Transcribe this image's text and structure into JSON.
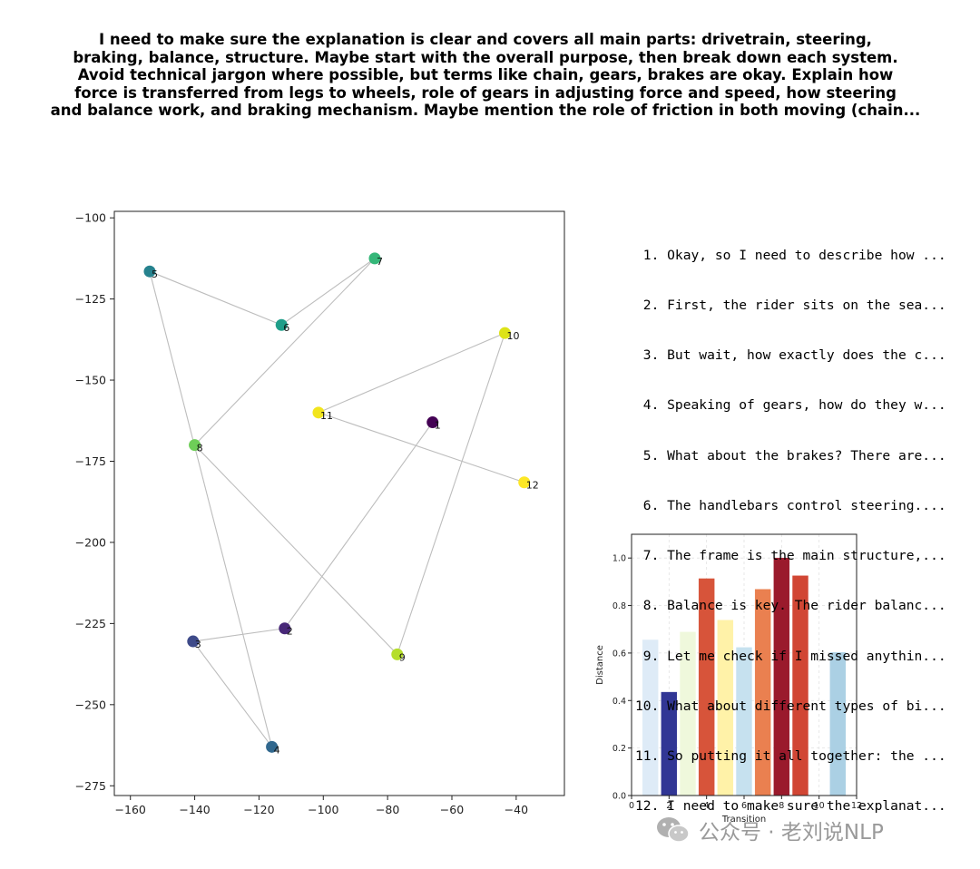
{
  "title": "I need to make sure the explanation is clear and covers all main parts: drivetrain, steering, braking, balance, structure. Maybe start with the overall purpose, then break down each system. Avoid technical jargon where possible, but terms like chain, gears, brakes are okay. Explain how force is transferred from legs to wheels, role of gears in adjusting force and speed, how steering and balance work, and braking mechanism. Maybe mention the role of friction in both moving (chain...",
  "title_lines": [
    "I need to make sure the explanation is clear and covers all main parts: drivetrain, steering,",
    "braking, balance, structure. Maybe start with the overall purpose, then break down each system.",
    "Avoid technical jargon where possible, but terms like chain, gears, brakes are okay. Explain how",
    "force is transferred from legs to wheels, role of gears in adjusting force and speed, how steering",
    "and balance work, and braking mechanism. Maybe mention the role of friction in both moving (chain..."
  ],
  "steps": [
    " 1. Okay, so I need to describe how ...",
    " 2. First, the rider sits on the sea...",
    " 3. But wait, how exactly does the c...",
    " 4. Speaking of gears, how do they w...",
    " 5. What about the brakes? There are...",
    " 6. The handlebars control steering....",
    " 7. The frame is the main structure,...",
    " 8. Balance is key. The rider balanc...",
    " 9. Let me check if I missed anythin...",
    "10. What about different types of bi...",
    "11. So putting it all together: the ...",
    "12. I need to make sure the explanat..."
  ],
  "watermark": {
    "text": "公众号 · 老刘说NLP",
    "icon": "wechat-icon"
  },
  "chart_data": [
    {
      "type": "scatter",
      "xlim": [
        -165,
        -25
      ],
      "ylim": [
        -278,
        -98
      ],
      "xticks": [
        -160,
        -140,
        -120,
        -100,
        -80,
        -60,
        -40
      ],
      "yticks": [
        -100,
        -125,
        -150,
        -175,
        -200,
        -225,
        -250,
        -275
      ],
      "grid": false,
      "colormap": "viridis",
      "connect_in_order": true,
      "points": [
        {
          "label": "1",
          "x": -66,
          "y": -163,
          "color": "#440154"
        },
        {
          "label": "2",
          "x": -112,
          "y": -226.5,
          "color": "#482878"
        },
        {
          "label": "3",
          "x": -140.5,
          "y": -230.5,
          "color": "#3e4a89"
        },
        {
          "label": "4",
          "x": -116,
          "y": -263,
          "color": "#31688e"
        },
        {
          "label": "5",
          "x": -154,
          "y": -116.5,
          "color": "#26828e"
        },
        {
          "label": "6",
          "x": -113,
          "y": -133,
          "color": "#1f9e89"
        },
        {
          "label": "7",
          "x": -84,
          "y": -112.5,
          "color": "#35b779"
        },
        {
          "label": "8",
          "x": -140,
          "y": -170,
          "color": "#6ece58"
        },
        {
          "label": "9",
          "x": -77,
          "y": -234.5,
          "color": "#b5de2b"
        },
        {
          "label": "10",
          "x": -43.5,
          "y": -135.5,
          "color": "#dde318"
        },
        {
          "label": "11",
          "x": -101.5,
          "y": -160,
          "color": "#f2e51d"
        },
        {
          "label": "12",
          "x": -37.5,
          "y": -181.5,
          "color": "#fde725"
        }
      ],
      "point_colors_by_position": [
        "#2f6b8e",
        "#3a8a8f",
        "#3e9a8c",
        "#4aab7a",
        "#6ac46a",
        "#9bd35a",
        "#c8e045",
        "#f0e52c"
      ]
    },
    {
      "type": "bar",
      "xlabel": "Transition",
      "ylabel": "Distance",
      "xlim": [
        0,
        12
      ],
      "ylim": [
        0,
        1.1
      ],
      "xticks": [
        0,
        2,
        4,
        6,
        8,
        10,
        12
      ],
      "yticks": [
        0.0,
        0.2,
        0.4,
        0.6,
        0.8,
        1.0
      ],
      "grid": true,
      "categories": [
        1,
        2,
        3,
        4,
        5,
        6,
        7,
        8,
        9,
        10,
        11
      ],
      "values": [
        0.655,
        0.435,
        0.688,
        0.913,
        0.738,
        0.623,
        0.868,
        1.0,
        0.925,
        0.0,
        0.602
      ],
      "colors": [
        "#deebf7",
        "#313695",
        "#eff8dc",
        "#d7543a",
        "#fff2a8",
        "#c6e1ef",
        "#ea8050",
        "#9a1a2c",
        "#d14634",
        "#ffffff",
        "#abd0e4"
      ]
    }
  ]
}
